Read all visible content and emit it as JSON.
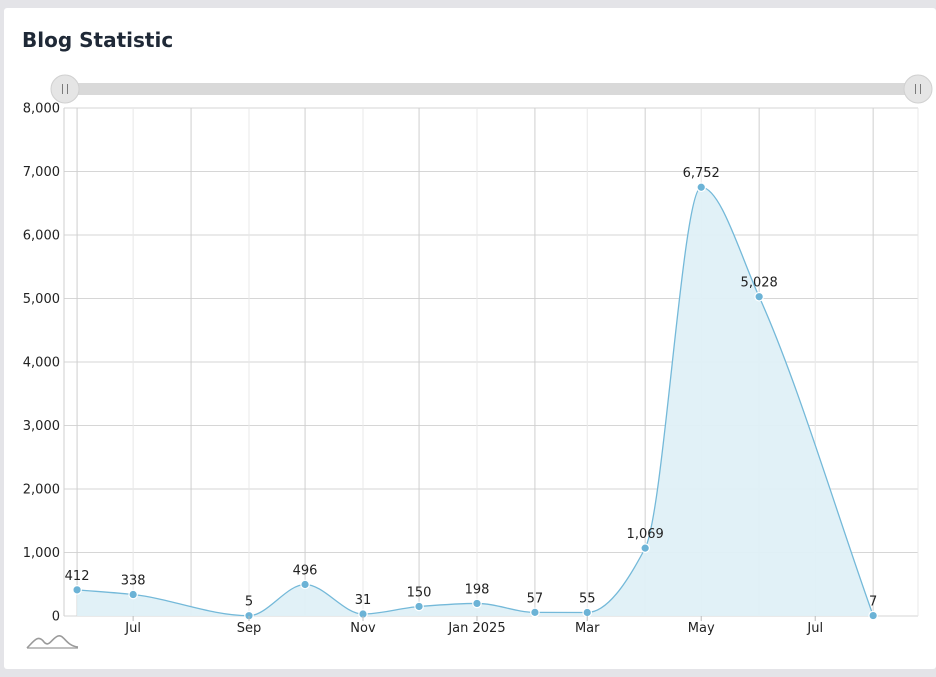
{
  "title": "Blog Statistic",
  "colors": {
    "line": "#74b9d9",
    "fill": "#dff0f7",
    "point": "#6cb3d6",
    "grid": "#d6d6d6",
    "scroll_track": "#d9d9d9",
    "scroll_handle": "#e5e5e5"
  },
  "scrollbar": {
    "left_handle_icon": "grip-icon",
    "right_handle_icon": "grip-icon"
  },
  "chart_data": {
    "type": "area",
    "title": "Blog Statistic",
    "x": [
      "2024-06-01",
      "2024-07-01",
      "2024-08-01",
      "2024-09-01",
      "2024-10-01",
      "2024-11-01",
      "2024-12-01",
      "2025-01-01",
      "2025-02-01",
      "2025-03-01",
      "2025-04-01",
      "2025-05-01",
      "2025-06-01",
      "2025-08-01"
    ],
    "values": [
      412,
      338,
      null,
      5,
      496,
      31,
      150,
      198,
      57,
      55,
      1069,
      6752,
      5028,
      7
    ],
    "data_labels": [
      "412",
      "338",
      "",
      "5",
      "496",
      "31",
      "150",
      "198",
      "57",
      "55",
      "1,069",
      "6,752",
      "5,028",
      "7"
    ],
    "x_tick_labels": [
      "Jul",
      "Sep",
      "Nov",
      "Jan 2025",
      "Mar",
      "May",
      "Jul"
    ],
    "x_tick_dates": [
      "2024-07-01",
      "2024-09-01",
      "2024-11-01",
      "2025-01-01",
      "2025-03-01",
      "2025-05-01",
      "2025-07-01"
    ],
    "y_tick_labels": [
      "0",
      "1,000",
      "2,000",
      "3,000",
      "4,000",
      "5,000",
      "6,000",
      "7,000",
      "8,000"
    ],
    "ylim": [
      0,
      8000
    ],
    "xlim": [
      "2024-05-25",
      "2025-08-25"
    ],
    "grid": true,
    "smooth": true
  }
}
